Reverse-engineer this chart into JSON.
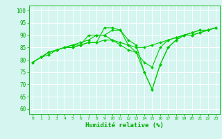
{
  "x": [
    0,
    1,
    2,
    3,
    4,
    5,
    6,
    7,
    8,
    9,
    10,
    11,
    12,
    13,
    14,
    15,
    16,
    17,
    18,
    19,
    20,
    21,
    22,
    23
  ],
  "lines": [
    [
      79,
      81,
      82,
      84,
      85,
      86,
      86,
      87,
      87,
      88,
      88,
      87,
      86,
      85,
      85,
      86,
      87,
      88,
      89,
      90,
      91,
      92,
      92,
      93
    ],
    [
      79,
      81,
      83,
      84,
      85,
      86,
      87,
      88,
      90,
      90,
      88,
      86,
      84,
      83,
      79,
      77,
      85,
      88,
      89,
      90,
      91,
      92,
      92,
      93
    ],
    [
      79,
      81,
      83,
      84,
      85,
      85,
      86,
      90,
      90,
      90,
      92,
      92,
      88,
      86,
      75,
      68,
      78,
      85,
      88,
      90,
      90,
      91,
      92,
      93
    ],
    [
      79,
      81,
      83,
      84,
      85,
      85,
      86,
      87,
      87,
      93,
      93,
      92,
      86,
      83,
      75,
      68,
      78,
      85,
      88,
      90,
      90,
      91,
      92,
      93
    ]
  ],
  "line_color": "#00cc00",
  "marker": "D",
  "markersize": 2.0,
  "linewidth": 0.8,
  "xlabel": "Humidité relative (%)",
  "ylabel_ticks": [
    60,
    65,
    70,
    75,
    80,
    85,
    90,
    95,
    100
  ],
  "ylim": [
    58,
    102
  ],
  "xlim": [
    -0.5,
    23.5
  ],
  "bg_color": "#d4f5f0",
  "grid_color": "#ffffff",
  "axis_color": "#00aa00",
  "tick_color": "#00aa00",
  "label_color": "#00aa00"
}
